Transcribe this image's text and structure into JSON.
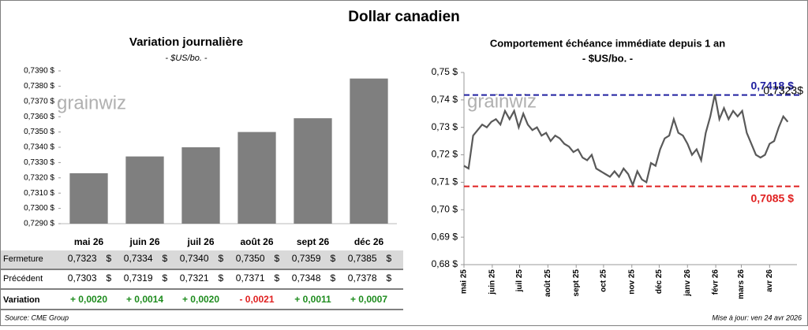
{
  "title": "Dollar canadien",
  "watermark": "grainwiz",
  "source": "Source: CME Group",
  "updated": "Mise à jour: ven 24 avr 2026",
  "chart_data": [
    {
      "type": "bar",
      "title": "Variation  journalière",
      "subtitle": "- $US/bo. -",
      "categories": [
        "mai 26",
        "juin 26",
        "juil 26",
        "août 26",
        "sept 26",
        "déc 26"
      ],
      "values": [
        0.7323,
        0.7334,
        0.734,
        0.735,
        0.7359,
        0.7385
      ],
      "value_labels": [
        "0,7323",
        "0,7334",
        "0,7340",
        "0,7350",
        "0,7359",
        "0,7385"
      ],
      "color": "#7f7f7f",
      "ylim": [
        0.729,
        0.739
      ],
      "yticks": [
        {
          "value": 0.729,
          "label": "0,7290 $"
        },
        {
          "value": 0.73,
          "label": "0,7300 $"
        },
        {
          "value": 0.731,
          "label": "0,7310 $"
        },
        {
          "value": 0.732,
          "label": "0,7320 $"
        },
        {
          "value": 0.733,
          "label": "0,7330 $"
        },
        {
          "value": 0.734,
          "label": "0,7340 $"
        },
        {
          "value": 0.735,
          "label": "0,7350 $"
        },
        {
          "value": 0.736,
          "label": "0,7360 $"
        },
        {
          "value": 0.737,
          "label": "0,7370 $"
        },
        {
          "value": 0.738,
          "label": "0,7380 $"
        },
        {
          "value": 0.739,
          "label": "0,7390 $"
        }
      ]
    },
    {
      "type": "line",
      "title": "Comportement échéance immédiate depuis 1 an",
      "subtitle": "- $US/bo. -",
      "x": [
        0,
        5,
        10,
        15,
        20,
        25,
        30,
        35,
        40,
        45,
        50,
        55,
        60,
        65,
        70,
        75,
        80,
        85,
        90,
        95,
        100,
        105,
        110,
        115,
        120,
        125,
        130,
        135,
        140,
        145,
        150,
        155,
        160,
        165,
        170,
        175,
        180,
        185,
        190,
        195,
        200,
        205,
        210,
        215,
        220,
        225,
        230,
        235,
        240,
        245,
        250,
        255,
        260,
        265,
        270,
        275,
        280,
        285,
        290,
        295,
        300,
        305,
        310,
        315,
        320,
        325,
        330,
        335,
        340,
        345,
        350,
        355
      ],
      "series": [
        {
          "name": "Dollar canadien",
          "color": "#595959",
          "values": [
            0.716,
            0.715,
            0.727,
            0.729,
            0.731,
            0.73,
            0.732,
            0.733,
            0.731,
            0.736,
            0.733,
            0.736,
            0.73,
            0.735,
            0.731,
            0.729,
            0.73,
            0.727,
            0.728,
            0.725,
            0.727,
            0.726,
            0.724,
            0.723,
            0.721,
            0.722,
            0.719,
            0.718,
            0.72,
            0.715,
            0.714,
            0.713,
            0.712,
            0.714,
            0.712,
            0.715,
            0.713,
            0.709,
            0.714,
            0.711,
            0.71,
            0.717,
            0.716,
            0.722,
            0.726,
            0.727,
            0.733,
            0.728,
            0.727,
            0.724,
            0.72,
            0.722,
            0.718,
            0.728,
            0.734,
            0.742,
            0.733,
            0.737,
            0.733,
            0.736,
            0.734,
            0.736,
            0.728,
            0.724,
            0.72,
            0.719,
            0.72,
            0.724,
            0.725,
            0.73,
            0.734,
            0.732
          ]
        }
      ],
      "xlim": [
        0,
        365
      ],
      "xticks": [
        {
          "value": 0,
          "label": "mai 25"
        },
        {
          "value": 31,
          "label": "juin 25"
        },
        {
          "value": 61,
          "label": "juil 25"
        },
        {
          "value": 92,
          "label": "août 25"
        },
        {
          "value": 123,
          "label": "sept 25"
        },
        {
          "value": 153,
          "label": "oct 25"
        },
        {
          "value": 184,
          "label": "nov 25"
        },
        {
          "value": 214,
          "label": "déc 25"
        },
        {
          "value": 245,
          "label": "janv 26"
        },
        {
          "value": 276,
          "label": "févr 26"
        },
        {
          "value": 304,
          "label": "mars 26"
        },
        {
          "value": 335,
          "label": "avr 26"
        }
      ],
      "ylim": [
        0.68,
        0.75
      ],
      "yticks": [
        {
          "value": 0.68,
          "label": "0,68 $"
        },
        {
          "value": 0.69,
          "label": "0,69 $"
        },
        {
          "value": 0.7,
          "label": "0,70 $"
        },
        {
          "value": 0.71,
          "label": "0,71 $"
        },
        {
          "value": 0.72,
          "label": "0,72 $"
        },
        {
          "value": 0.73,
          "label": "0,73 $"
        },
        {
          "value": 0.74,
          "label": "0,74 $"
        },
        {
          "value": 0.75,
          "label": "0,75 $"
        }
      ],
      "reference_lines": [
        {
          "value": 0.7418,
          "label": "0,7418 $",
          "color": "#2020a0"
        },
        {
          "value": 0.7085,
          "label": "0,7085 $",
          "color": "#e02020"
        }
      ],
      "end_label": "0,7323$"
    }
  ],
  "table": {
    "currency": "$",
    "up_color": "#1e8c1e",
    "down_color": "#e02020",
    "rows": [
      {
        "label": "Fermeture"
      },
      {
        "label": "Précédent",
        "values": [
          "0,7303",
          "0,7319",
          "0,7321",
          "0,7371",
          "0,7348",
          "0,7378"
        ]
      },
      {
        "label": "Variation",
        "values": [
          "+ 0,0020",
          "+ 0,0014",
          "+ 0,0020",
          "- 0,0021",
          "+ 0,0011",
          "+ 0,0007"
        ]
      }
    ]
  }
}
